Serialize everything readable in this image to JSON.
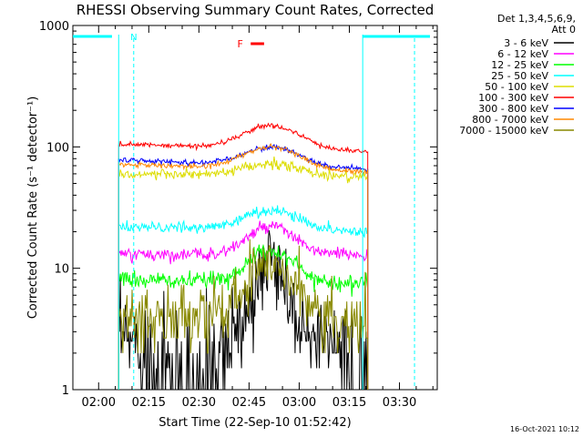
{
  "chart_data": {
    "type": "line",
    "title": "RHESSI Observing Summary Count Rates, Corrected",
    "xlabel": "Start Time (22-Sep-10 01:52:42)",
    "ylabel": "Corrected Count Rate (s⁻¹ detector⁻¹)",
    "ylog": true,
    "ylim": [
      1,
      1000
    ],
    "xlim_minutes": [
      -7.7,
      101.3
    ],
    "x_ticks": [
      "02:00",
      "02:15",
      "02:30",
      "02:45",
      "03:00",
      "03:15",
      "03:30"
    ],
    "x_tick_minutes": [
      0,
      15,
      30,
      45,
      60,
      75,
      90
    ],
    "y_ticks": [
      "1",
      "10",
      "100",
      "1000"
    ],
    "y_tick_values": [
      1,
      10,
      100,
      1000
    ],
    "data_interval_minutes": [
      6.0,
      80.5
    ],
    "peak_minute": 51.5,
    "legend": {
      "header": [
        "Det 1,3,4,5,6,9,",
        "Att 0"
      ],
      "placement": "right"
    },
    "series": [
      {
        "name": "3 - 6 keV",
        "color": "#000000",
        "start": 2.5,
        "peak": 10,
        "end": 2.5,
        "width": 5.5,
        "noise": 0.45
      },
      {
        "name": "6 - 12 keV",
        "color": "#ff00ff",
        "start": 13,
        "peak": 22,
        "end": 13,
        "width": 9,
        "noise": 0.06
      },
      {
        "name": "12 - 25 keV",
        "color": "#00ff00",
        "start": 8,
        "peak": 14,
        "end": 7.5,
        "width": 9,
        "noise": 0.08
      },
      {
        "name": "25 - 50 keV",
        "color": "#00ffff",
        "start": 22,
        "peak": 30,
        "end": 20,
        "width": 11,
        "noise": 0.05
      },
      {
        "name": "50 - 100 keV",
        "color": "#dddd00",
        "start": 60,
        "peak": 72,
        "end": 57,
        "width": 11,
        "noise": 0.05
      },
      {
        "name": "100 - 300 keV",
        "color": "#ff0000",
        "start": 105,
        "peak": 150,
        "end": 92,
        "width": 11,
        "noise": 0.025
      },
      {
        "name": "300 - 800 keV",
        "color": "#0000ff",
        "start": 78,
        "peak": 100,
        "end": 65,
        "width": 11,
        "noise": 0.025
      },
      {
        "name": "800 - 7000 keV",
        "color": "#ff8800",
        "start": 72,
        "peak": 100,
        "end": 62,
        "width": 11,
        "noise": 0.025
      },
      {
        "name": "7000 - 15000 keV",
        "color": "#888800",
        "start": 4,
        "peak": 12,
        "end": 3.5,
        "width": 9,
        "noise": 0.3
      }
    ],
    "annotations": {
      "night_label": "N",
      "flare_label": "F",
      "night_bar_color": "#00ffff",
      "flare_color": "#ff0000"
    }
  },
  "footer_date": "16-Oct-2021 10:12"
}
